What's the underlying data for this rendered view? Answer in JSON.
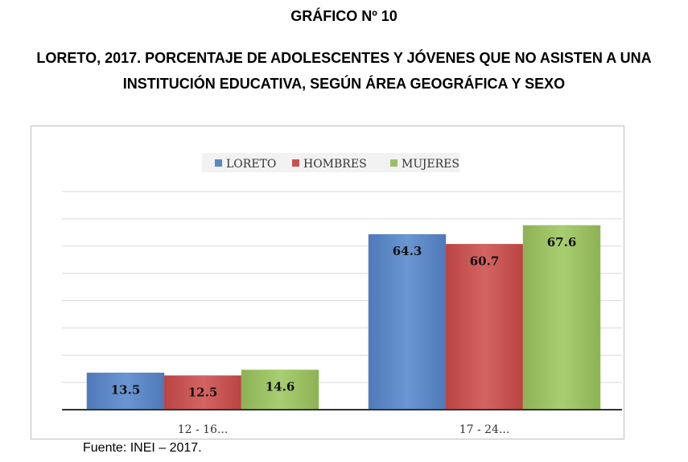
{
  "heading": {
    "number": "GRÁFICO Nº 10",
    "title_line1": "LORETO, 2017. PORCENTAJE DE ADOLESCENTES Y JÓVENES QUE NO ASISTEN A UNA",
    "title_line2": "INSTITUCIÓN EDUCATIVA, SEGÚN ÁREA GEOGRÁFICA Y SEXO"
  },
  "source": "Fuente: INEI – 2017.",
  "colors": {
    "loreto": "#5b87c5",
    "hombres": "#c9504f",
    "mujeres": "#9bc063",
    "grid": "#d9d9d9",
    "axis": "#333333"
  },
  "chart_data": {
    "type": "bar",
    "title": "",
    "xlabel": "",
    "ylabel": "",
    "categories": [
      "12 - 16...",
      "17 - 24..."
    ],
    "series": [
      {
        "name": "LORETO",
        "values": [
          13.5,
          64.3
        ]
      },
      {
        "name": "HOMBRES",
        "values": [
          12.5,
          60.7
        ]
      },
      {
        "name": "MUJERES",
        "values": [
          14.6,
          67.6
        ]
      }
    ],
    "ylim": [
      0,
      80
    ],
    "grid": true,
    "legend": "top-center",
    "data_labels": true
  }
}
